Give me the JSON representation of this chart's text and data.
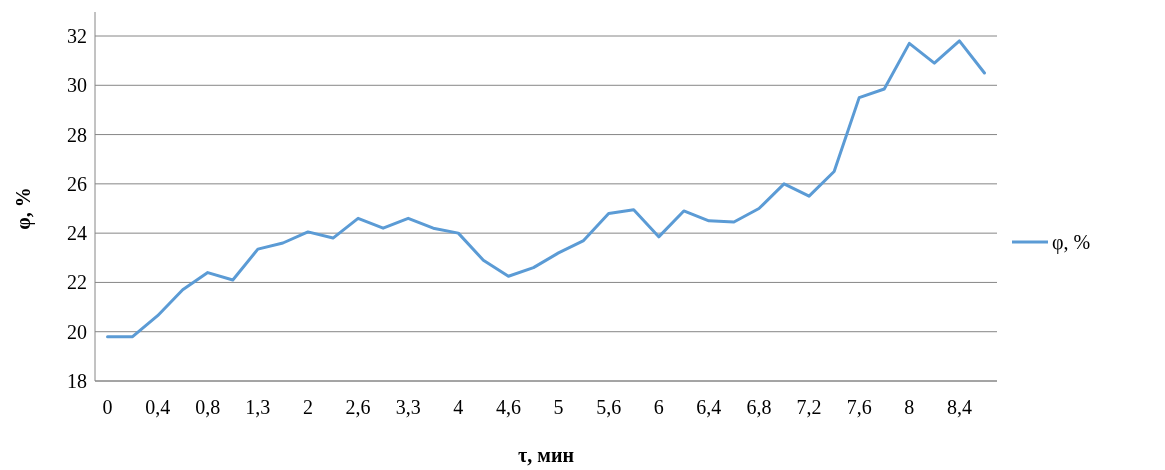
{
  "chart_data": {
    "type": "line",
    "xlabel": "τ, мин",
    "ylabel": "φ, %",
    "categories": [
      "0",
      null,
      "0,4",
      null,
      "0,8",
      null,
      "1,3",
      null,
      "2",
      null,
      "2,6",
      null,
      "3,3",
      null,
      "4",
      null,
      "4,6",
      null,
      "5",
      null,
      "5,6",
      null,
      "6",
      null,
      "6,4",
      null,
      "6,8",
      null,
      "7,2",
      null,
      "7,6",
      null,
      "8",
      null,
      "8,4",
      null
    ],
    "series": [
      {
        "name": "φ, %",
        "color": "#5b9bd5",
        "values": [
          19.8,
          19.8,
          20.65,
          21.7,
          22.4,
          22.1,
          23.35,
          23.6,
          24.05,
          23.8,
          24.6,
          24.2,
          24.6,
          24.2,
          24.0,
          22.9,
          22.25,
          22.6,
          23.2,
          23.7,
          24.8,
          24.95,
          23.85,
          24.9,
          24.5,
          24.45,
          25.0,
          26.0,
          25.5,
          26.5,
          29.5,
          29.85,
          31.7,
          30.9,
          31.8,
          30.5
        ]
      }
    ],
    "ylim": [
      18,
      32
    ],
    "yticks": [
      18,
      20,
      22,
      24,
      26,
      28,
      30,
      32
    ],
    "grid": "y",
    "legend": "right",
    "marker": "none",
    "line_style": "solid"
  }
}
